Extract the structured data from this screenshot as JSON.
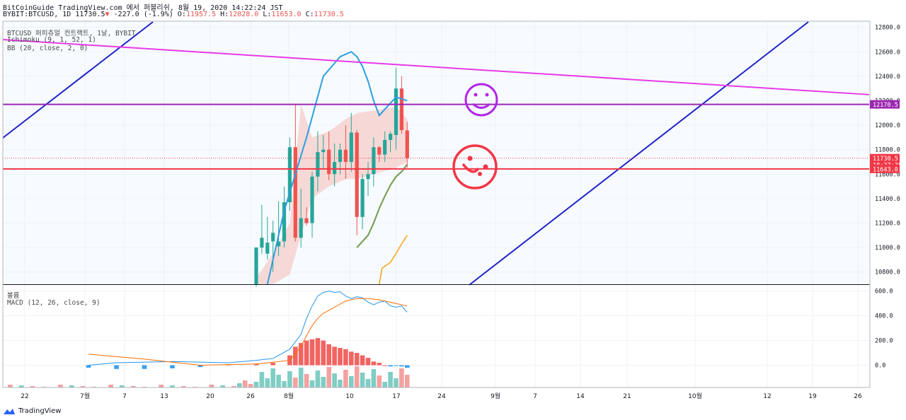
{
  "header": {
    "line1": "BitCoinGuide TradingView.com 에서 퍼블리쉬, 8월 19, 2020 14:22:24 JST",
    "symbol": "BYBIT:BTCUSD, 1D",
    "last": "11730.5",
    "change_arrow": "▼",
    "change": "-227.0 (-1.9%)",
    "o_label": "O:",
    "o_val": "11957.5",
    "h_label": "H:",
    "h_val": "12028.0",
    "l_label": "L:",
    "l_val": "11653.0",
    "c_label": "C:",
    "c_val": "11730.5"
  },
  "legend": {
    "title": "BTCUSD 퍼피츄얼 컨트랙트, 1날, BYBIT",
    "ichimoku": "Ichimoku (9, 1, 52, 1)",
    "bb": "BB (20, close, 2, 0)",
    "volume": "볼륨",
    "macd": "MACD (12, 26, close, 9)"
  },
  "footer": {
    "brand": "TradingView"
  },
  "colors": {
    "up": "#26a69a",
    "down": "#ef5350",
    "magenta": "#e83ae8",
    "purple": "#9c27b0",
    "red": "#f23645",
    "blue": "#1e22c8",
    "sky": "#2d9ee0",
    "olive": "#7ea05a",
    "orange": "#f5a623",
    "band": "#f6d2cf"
  },
  "chart_data": {
    "type": "candlestick",
    "ylim": [
      10700,
      12850
    ],
    "y_ticks": [
      "12800.0",
      "12600.0",
      "12400.0",
      "12200.0",
      "12000.0",
      "11800.0",
      "11600.0",
      "11400.0",
      "11200.0",
      "11000.0",
      "10800.0"
    ],
    "x_ticks": [
      "22",
      "7월",
      "7",
      "13",
      "20",
      "26",
      "8월",
      "10",
      "17",
      "24",
      "9월",
      "7",
      "14",
      "21",
      "10월",
      "12",
      "19",
      "26"
    ],
    "price_tags": [
      {
        "value": 12170.5,
        "label": "12170.5",
        "color": "#9c27b0"
      },
      {
        "value": 11730.5,
        "label": "11730.5",
        "color": "#f23645"
      },
      {
        "value": 11676,
        "label": "18:37:38",
        "color": "#f23645"
      },
      {
        "value": 11643.0,
        "label": "11643.0",
        "color": "#f23645"
      }
    ],
    "candles": [
      {
        "o": 10700,
        "h": 11000,
        "l": 10680,
        "c": 11000
      },
      {
        "o": 11000,
        "h": 11350,
        "l": 10950,
        "c": 11080
      },
      {
        "o": 10950,
        "h": 11250,
        "l": 10900,
        "c": 11040
      },
      {
        "o": 11050,
        "h": 11220,
        "l": 10800,
        "c": 11120
      },
      {
        "o": 11010,
        "h": 11380,
        "l": 10930,
        "c": 11050
      },
      {
        "o": 11050,
        "h": 11500,
        "l": 11000,
        "c": 11370
      },
      {
        "o": 11370,
        "h": 11900,
        "l": 11300,
        "c": 11820
      },
      {
        "o": 11820,
        "h": 12170,
        "l": 11050,
        "c": 11080
      },
      {
        "o": 11080,
        "h": 11480,
        "l": 11000,
        "c": 11240
      },
      {
        "o": 11240,
        "h": 11330,
        "l": 11180,
        "c": 11200
      },
      {
        "o": 11200,
        "h": 11620,
        "l": 11080,
        "c": 11580
      },
      {
        "o": 11580,
        "h": 11950,
        "l": 11460,
        "c": 11780
      },
      {
        "o": 11780,
        "h": 11920,
        "l": 11650,
        "c": 11800
      },
      {
        "o": 11800,
        "h": 11950,
        "l": 11550,
        "c": 11600
      },
      {
        "o": 11600,
        "h": 11850,
        "l": 11500,
        "c": 11700
      },
      {
        "o": 11700,
        "h": 11850,
        "l": 11600,
        "c": 11800
      },
      {
        "o": 11800,
        "h": 12000,
        "l": 11560,
        "c": 11700
      },
      {
        "o": 11700,
        "h": 12100,
        "l": 11620,
        "c": 11940
      },
      {
        "o": 11940,
        "h": 11960,
        "l": 11100,
        "c": 11250
      },
      {
        "o": 11250,
        "h": 11600,
        "l": 11150,
        "c": 11560
      },
      {
        "o": 11560,
        "h": 11700,
        "l": 11420,
        "c": 11600
      },
      {
        "o": 11600,
        "h": 11900,
        "l": 11500,
        "c": 11820
      },
      {
        "o": 11820,
        "h": 11830,
        "l": 11700,
        "c": 11760
      },
      {
        "o": 11760,
        "h": 11950,
        "l": 11700,
        "c": 11880
      },
      {
        "o": 11880,
        "h": 11950,
        "l": 11780,
        "c": 11930
      },
      {
        "o": 11920,
        "h": 12470,
        "l": 11800,
        "c": 12300
      },
      {
        "o": 12300,
        "h": 12400,
        "l": 11930,
        "c": 11960
      },
      {
        "o": 11957.5,
        "h": 12028,
        "l": 11653,
        "c": 11730.5
      }
    ],
    "x_start_index": 0,
    "tenkan": [
      [
        2,
        10700
      ],
      [
        5,
        11300
      ],
      [
        9,
        11900
      ],
      [
        12,
        12400
      ],
      [
        15,
        12560
      ],
      [
        16,
        12580
      ],
      [
        17,
        12600
      ],
      [
        18,
        12560
      ],
      [
        19,
        12480
      ],
      [
        20,
        12360
      ],
      [
        21,
        12200
      ],
      [
        22,
        12080
      ],
      [
        25,
        12230
      ],
      [
        27,
        12200
      ]
    ],
    "kijun": [
      [
        18,
        11000
      ],
      [
        20,
        11100
      ],
      [
        21,
        11200
      ],
      [
        22,
        11320
      ],
      [
        23,
        11420
      ],
      [
        24,
        11510
      ],
      [
        25,
        11580
      ],
      [
        26,
        11620
      ],
      [
        27,
        11680
      ]
    ],
    "orange": [
      [
        22,
        10700
      ],
      [
        22.5,
        10830
      ],
      [
        24,
        10880
      ],
      [
        25,
        10950
      ],
      [
        26,
        11030
      ],
      [
        27,
        11100
      ]
    ],
    "bb_upper": [
      [
        0,
        10750
      ],
      [
        3,
        10950
      ],
      [
        6,
        11200
      ],
      [
        8,
        12170
      ],
      [
        10,
        11900
      ],
      [
        13,
        11950
      ],
      [
        16,
        12050
      ],
      [
        18,
        12100
      ],
      [
        21,
        12120
      ],
      [
        25,
        12150
      ],
      [
        27,
        12050
      ]
    ],
    "bb_lower": [
      [
        0,
        10700
      ],
      [
        3,
        10700
      ],
      [
        6,
        10780
      ],
      [
        8,
        11100
      ],
      [
        10,
        11400
      ],
      [
        13,
        11500
      ],
      [
        16,
        11560
      ],
      [
        18,
        11560
      ],
      [
        21,
        11600
      ],
      [
        25,
        11650
      ],
      [
        27,
        11700
      ]
    ],
    "lines": [
      {
        "color": "#e83ae8",
        "y_start": 12700,
        "y_end": 12250
      },
      {
        "color": "#9c27b0",
        "y": 12170.5
      },
      {
        "color": "#f23645",
        "y": 11643
      }
    ],
    "volume_ylim": [
      -180,
      650
    ],
    "volume_ticks": [
      "600.0",
      "400.0",
      "200.0",
      "0.0"
    ],
    "macd": [
      [
        -30,
        0
      ],
      [
        -25,
        20
      ],
      [
        -15,
        30
      ],
      [
        -5,
        20
      ],
      [
        0,
        40
      ],
      [
        3,
        55
      ],
      [
        6,
        130
      ],
      [
        8,
        250
      ],
      [
        9,
        380
      ],
      [
        10,
        480
      ],
      [
        11,
        560
      ],
      [
        12,
        590
      ],
      [
        13,
        600
      ],
      [
        14,
        590
      ],
      [
        15,
        595
      ],
      [
        16,
        560
      ],
      [
        17,
        540
      ],
      [
        18,
        555
      ],
      [
        19,
        545
      ],
      [
        20,
        510
      ],
      [
        21,
        490
      ],
      [
        22,
        510
      ],
      [
        23,
        520
      ],
      [
        24,
        480
      ],
      [
        25,
        470
      ],
      [
        26,
        480
      ],
      [
        27,
        430
      ]
    ],
    "signal": [
      [
        -30,
        90
      ],
      [
        -20,
        50
      ],
      [
        -10,
        0
      ],
      [
        0,
        10
      ],
      [
        6,
        40
      ],
      [
        8,
        150
      ],
      [
        9,
        240
      ],
      [
        10,
        320
      ],
      [
        11,
        380
      ],
      [
        12,
        420
      ],
      [
        14,
        470
      ],
      [
        16,
        520
      ],
      [
        18,
        540
      ],
      [
        20,
        540
      ],
      [
        22,
        530
      ],
      [
        24,
        510
      ],
      [
        25,
        500
      ],
      [
        27,
        480
      ]
    ],
    "histogram": [
      [
        -30,
        -20
      ],
      [
        -25,
        -30
      ],
      [
        -20,
        -30
      ],
      [
        -15,
        -25
      ],
      [
        -10,
        -15
      ],
      [
        -5,
        5
      ],
      [
        0,
        10
      ],
      [
        3,
        20
      ],
      [
        6,
        80
      ],
      [
        7,
        150
      ],
      [
        8,
        180
      ],
      [
        9,
        200
      ],
      [
        10,
        210
      ],
      [
        11,
        220
      ],
      [
        12,
        200
      ],
      [
        13,
        170
      ],
      [
        14,
        150
      ],
      [
        15,
        140
      ],
      [
        16,
        130
      ],
      [
        17,
        110
      ],
      [
        18,
        100
      ],
      [
        19,
        80
      ],
      [
        20,
        60
      ],
      [
        21,
        30
      ],
      [
        22,
        20
      ],
      [
        23,
        0
      ],
      [
        24,
        -10
      ],
      [
        25,
        -5
      ],
      [
        26,
        -10
      ],
      [
        27,
        -20
      ]
    ]
  }
}
